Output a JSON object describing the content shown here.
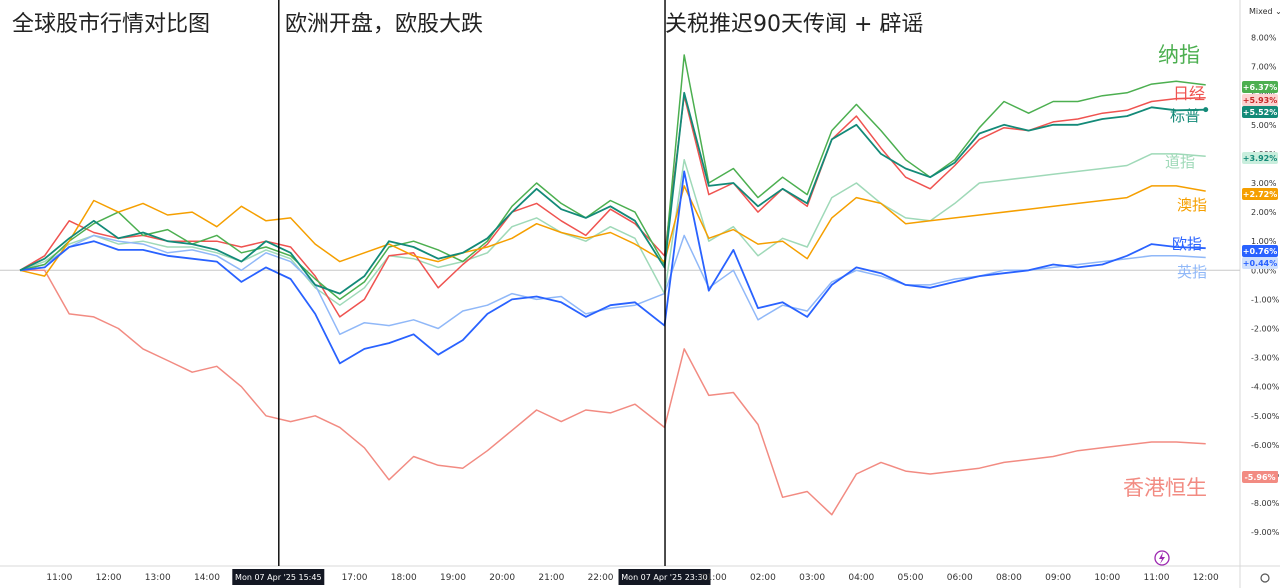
{
  "chart_data": {
    "type": "line",
    "sections": [
      "全球股市行情对比图",
      "欧洲开盘，欧股大跌",
      "关税推迟90天传闻 + 辟谣"
    ],
    "scale_mode": "Mixed",
    "y_unit": "%",
    "ylim": [
      -9.5,
      8.5
    ],
    "y_ticks": [
      "8.00%",
      "7.00%",
      "6.00%",
      "5.00%",
      "4.00%",
      "3.00%",
      "2.00%",
      "1.00%",
      "0.00%",
      "-1.00%",
      "-2.00%",
      "-3.00%",
      "-4.00%",
      "-5.00%",
      "-6.00%",
      "-7.00%",
      "-8.00%",
      "-9.00%"
    ],
    "x_ticks": [
      "11:00",
      "12:00",
      "13:00",
      "14:00",
      "Mon 07 Apr '25  15:45",
      "17:00",
      "18:00",
      "19:00",
      "20:00",
      "21:00",
      "22:00",
      "Mon 07 Apr '25  23:30",
      "01:00",
      "02:00",
      "03:00",
      "04:00",
      "05:00",
      "06:00",
      "08:00",
      "09:00",
      "10:00",
      "11:00",
      "12:00"
    ],
    "x_tick_pos": [
      0.3,
      1.3,
      2.3,
      3.3,
      4.75,
      6.3,
      7.3,
      8.3,
      9.3,
      10.3,
      11.3,
      12.6,
      13.6,
      14.6,
      15.6,
      16.6,
      17.6,
      18.6,
      19.6,
      20.6,
      21.6,
      22.6,
      23.6
    ],
    "vertical_markers": [
      4.75,
      12.6
    ],
    "xlim": [
      -0.5,
      24.5
    ],
    "grid": false,
    "legend": "labels at right end of lines",
    "series": [
      {
        "name": "纳指",
        "color": "#4caf50",
        "badge": "+6.37%",
        "x": [
          -0.5,
          0,
          0.5,
          1,
          1.5,
          2,
          2.5,
          3,
          3.5,
          4,
          4.5,
          5,
          5.5,
          6,
          6.5,
          7,
          7.5,
          8,
          8.5,
          9,
          9.5,
          10,
          10.5,
          11,
          11.5,
          12,
          12.6,
          13,
          13.5,
          14,
          14.5,
          15,
          15.5,
          16,
          16.5,
          17,
          17.5,
          18,
          18.5,
          19,
          19.5,
          20,
          20.5,
          21,
          21.5,
          22,
          22.5,
          23,
          23.6
        ],
        "y": [
          0.0,
          0.2,
          1.0,
          1.6,
          2.0,
          1.2,
          1.4,
          0.9,
          1.2,
          0.6,
          0.8,
          0.5,
          -0.3,
          -1.0,
          -0.4,
          0.8,
          1.0,
          0.7,
          0.3,
          1.0,
          2.2,
          3.0,
          2.3,
          1.8,
          2.4,
          2.0,
          0.2,
          7.4,
          3.0,
          3.5,
          2.5,
          3.2,
          2.6,
          4.8,
          5.7,
          4.8,
          3.8,
          3.2,
          3.8,
          4.9,
          5.8,
          5.4,
          5.8,
          5.8,
          6.0,
          6.1,
          6.4,
          6.5,
          6.37
        ]
      },
      {
        "name": "日经",
        "color": "#ef5350",
        "badge": "+5.93%",
        "x": [
          -0.5,
          0,
          0.5,
          1,
          1.5,
          2,
          2.5,
          3,
          3.5,
          4,
          4.5,
          5,
          5.5,
          6,
          6.5,
          7,
          7.5,
          8,
          8.5,
          9,
          9.5,
          10,
          10.5,
          11,
          11.5,
          12,
          12.6,
          13,
          13.5,
          14,
          14.5,
          15,
          15.5,
          16,
          16.5,
          17,
          17.5,
          18,
          18.5,
          19,
          19.5,
          20,
          20.5,
          21,
          21.5,
          22,
          22.5,
          23,
          23.6
        ],
        "y": [
          0.0,
          0.5,
          1.7,
          1.3,
          1.1,
          1.2,
          1.0,
          1.0,
          1.0,
          0.8,
          1.0,
          0.8,
          -0.2,
          -1.6,
          -1.0,
          0.5,
          0.6,
          -0.6,
          0.2,
          0.9,
          2.0,
          2.3,
          1.7,
          1.2,
          2.1,
          1.6,
          0.5,
          6.0,
          2.6,
          3.0,
          2.0,
          2.8,
          2.2,
          4.5,
          5.3,
          4.2,
          3.2,
          2.8,
          3.6,
          4.5,
          4.9,
          4.8,
          5.1,
          5.2,
          5.4,
          5.5,
          5.8,
          5.9,
          5.93
        ]
      },
      {
        "name": "标普",
        "color": "#138a78",
        "badge": "+5.52%",
        "x": [
          -0.5,
          0,
          0.5,
          1,
          1.5,
          2,
          2.5,
          3,
          3.5,
          4,
          4.5,
          5,
          5.5,
          6,
          6.5,
          7,
          7.5,
          8,
          8.5,
          9,
          9.5,
          10,
          10.5,
          11,
          11.5,
          12,
          12.6,
          13,
          13.5,
          14,
          14.5,
          15,
          15.5,
          16,
          16.5,
          17,
          17.5,
          18,
          18.5,
          19,
          19.5,
          20,
          20.5,
          21,
          21.5,
          22,
          22.5,
          23,
          23.6
        ],
        "y": [
          0.0,
          0.4,
          1.1,
          1.7,
          1.1,
          1.3,
          1.0,
          0.9,
          0.7,
          0.3,
          1.0,
          0.6,
          -0.5,
          -0.8,
          -0.2,
          1.0,
          0.8,
          0.4,
          0.6,
          1.1,
          2.0,
          2.8,
          2.1,
          1.8,
          2.2,
          1.7,
          0.1,
          6.1,
          2.9,
          3.0,
          2.2,
          2.8,
          2.3,
          4.5,
          5.0,
          4.0,
          3.5,
          3.2,
          3.7,
          4.7,
          5.0,
          4.8,
          5.0,
          5.0,
          5.2,
          5.3,
          5.6,
          5.5,
          5.52
        ]
      },
      {
        "name": "道指",
        "color": "#9fd9b8",
        "badge": "+3.92%",
        "x": [
          -0.5,
          0,
          0.5,
          1,
          1.5,
          2,
          2.5,
          3,
          3.5,
          4,
          4.5,
          5,
          5.5,
          6,
          6.5,
          7,
          7.5,
          8,
          8.5,
          9,
          9.5,
          10,
          10.5,
          11,
          11.5,
          12,
          12.6,
          13,
          13.5,
          14,
          14.5,
          15,
          15.5,
          16,
          16.5,
          17,
          17.5,
          18,
          18.5,
          19,
          19.5,
          20,
          20.5,
          21,
          21.5,
          22,
          22.5,
          23,
          23.6
        ],
        "y": [
          0.0,
          0.3,
          0.9,
          1.2,
          0.9,
          1.0,
          0.8,
          0.8,
          0.6,
          0.3,
          0.7,
          0.4,
          -0.6,
          -1.2,
          -0.6,
          0.5,
          0.4,
          0.1,
          0.3,
          0.6,
          1.5,
          1.8,
          1.3,
          1.0,
          1.5,
          1.1,
          -0.8,
          3.8,
          1.0,
          1.5,
          0.5,
          1.1,
          0.8,
          2.5,
          3.0,
          2.3,
          1.8,
          1.7,
          2.3,
          3.0,
          3.1,
          3.2,
          3.3,
          3.4,
          3.5,
          3.6,
          4.0,
          4.0,
          3.92
        ]
      },
      {
        "name": "澳指",
        "color": "#f59f00",
        "badge": "+2.72%",
        "x": [
          -0.5,
          0,
          0.5,
          1,
          1.5,
          2,
          2.5,
          3,
          3.5,
          4,
          4.5,
          5,
          5.5,
          6,
          6.5,
          7,
          7.5,
          8,
          8.5,
          9,
          9.5,
          10,
          10.5,
          11,
          11.5,
          12,
          12.6,
          13,
          13.5,
          14,
          14.5,
          15,
          15.5,
          16,
          16.5,
          17,
          17.5,
          18,
          19,
          20,
          21,
          22,
          22.5,
          23,
          23.6
        ],
        "y": [
          0.0,
          -0.2,
          1.0,
          2.4,
          2.0,
          2.3,
          1.9,
          2.0,
          1.5,
          2.2,
          1.7,
          1.8,
          0.9,
          0.3,
          0.6,
          0.9,
          0.5,
          0.3,
          0.6,
          0.8,
          1.1,
          1.6,
          1.3,
          1.1,
          1.3,
          0.9,
          0.3,
          2.9,
          1.1,
          1.4,
          0.9,
          1.0,
          0.4,
          1.8,
          2.5,
          2.3,
          1.6,
          1.7,
          1.9,
          2.1,
          2.3,
          2.5,
          2.9,
          2.9,
          2.72
        ]
      },
      {
        "name": "欧指",
        "color": "#2962ff",
        "badge": "+0.76%",
        "x": [
          -0.5,
          0,
          0.5,
          1,
          1.5,
          2,
          2.5,
          3,
          3.5,
          4,
          4.5,
          5,
          5.5,
          6,
          6.5,
          7,
          7.5,
          8,
          8.5,
          9,
          9.5,
          10,
          10.5,
          11,
          11.5,
          12,
          12.6,
          13,
          13.5,
          14,
          14.5,
          15,
          15.5,
          16,
          16.5,
          17,
          17.5,
          18,
          18.5,
          19,
          19.5,
          20,
          20.5,
          21,
          21.5,
          22,
          22.5,
          23,
          23.6
        ],
        "y": [
          0.0,
          0.1,
          0.8,
          1.0,
          0.7,
          0.7,
          0.5,
          0.4,
          0.3,
          -0.4,
          0.1,
          -0.3,
          -1.5,
          -3.2,
          -2.7,
          -2.5,
          -2.2,
          -2.9,
          -2.4,
          -1.5,
          -1.0,
          -0.9,
          -1.1,
          -1.6,
          -1.2,
          -1.1,
          -1.9,
          3.4,
          -0.7,
          0.7,
          -1.3,
          -1.1,
          -1.6,
          -0.5,
          0.1,
          -0.1,
          -0.5,
          -0.6,
          -0.4,
          -0.2,
          -0.1,
          0.0,
          0.2,
          0.1,
          0.2,
          0.5,
          0.9,
          0.8,
          0.76
        ]
      },
      {
        "name": "英指",
        "color": "#90b8f8",
        "badge": "+0.44%",
        "x": [
          -0.5,
          0,
          0.5,
          1,
          1.5,
          2,
          2.5,
          3,
          3.5,
          4,
          4.5,
          5,
          5.5,
          6,
          6.5,
          7,
          7.5,
          8,
          8.5,
          9,
          9.5,
          10,
          10.5,
          11,
          11.5,
          12,
          12.6,
          13,
          13.5,
          14,
          14.5,
          15,
          15.5,
          16,
          16.5,
          17,
          17.5,
          18,
          18.5,
          19,
          19.5,
          20,
          20.5,
          21,
          21.5,
          22,
          22.5,
          23,
          23.6
        ],
        "y": [
          0.0,
          0.2,
          0.8,
          1.2,
          1.0,
          0.9,
          0.6,
          0.7,
          0.5,
          0.0,
          0.6,
          0.3,
          -0.5,
          -2.2,
          -1.8,
          -1.9,
          -1.7,
          -2.0,
          -1.4,
          -1.2,
          -0.8,
          -1.0,
          -0.9,
          -1.5,
          -1.3,
          -1.2,
          -0.8,
          1.2,
          -0.6,
          0.0,
          -1.7,
          -1.2,
          -1.4,
          -0.4,
          0.0,
          -0.2,
          -0.5,
          -0.5,
          -0.3,
          -0.2,
          0.0,
          0.0,
          0.1,
          0.2,
          0.3,
          0.4,
          0.5,
          0.5,
          0.44
        ]
      },
      {
        "name": "香港恒生",
        "color": "#f28b82",
        "badge": "-5.96%",
        "x": [
          -0.5,
          0,
          0.5,
          1,
          1.5,
          2,
          2.5,
          3,
          3.5,
          4,
          4.5,
          5,
          5.5,
          6,
          6.5,
          7,
          7.5,
          8,
          8.5,
          9,
          9.5,
          10,
          10.5,
          11,
          11.5,
          12,
          12.6,
          13,
          13.5,
          14,
          14.5,
          15,
          15.5,
          16,
          16.5,
          17,
          17.5,
          18,
          18.5,
          19,
          19.5,
          20,
          20.5,
          21,
          21.5,
          22,
          22.5,
          23,
          23.6
        ],
        "y": [
          0.0,
          0.0,
          -1.5,
          -1.6,
          -2.0,
          -2.7,
          -3.1,
          -3.5,
          -3.3,
          -4.0,
          -5.0,
          -5.2,
          -5.0,
          -5.4,
          -6.1,
          -7.2,
          -6.4,
          -6.7,
          -6.8,
          -6.2,
          -5.5,
          -4.8,
          -5.2,
          -4.8,
          -4.9,
          -4.6,
          -5.4,
          -2.7,
          -4.3,
          -4.2,
          -5.3,
          -7.8,
          -7.6,
          -8.4,
          -7.0,
          -6.6,
          -6.9,
          -7.0,
          -6.9,
          -6.8,
          -6.6,
          -6.5,
          -6.4,
          -6.2,
          -6.1,
          -6.0,
          -5.9,
          -5.9,
          -5.96
        ]
      }
    ]
  }
}
